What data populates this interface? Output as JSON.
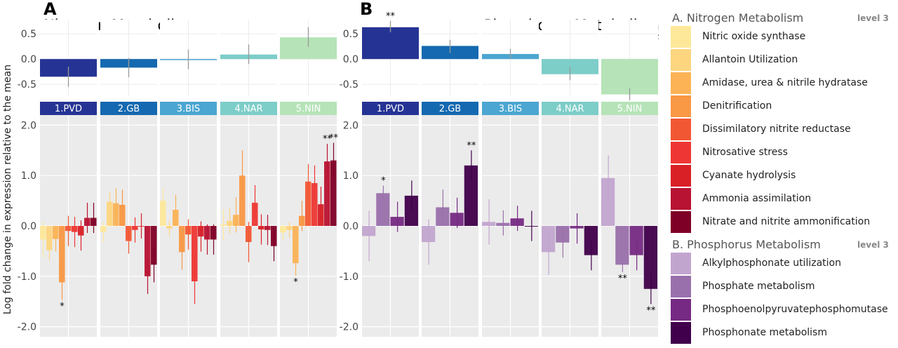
{
  "y_axis_title": "Log fold change in expression relative to the mean",
  "panels": [
    {
      "letter": "A",
      "title": "Nitrogen Metabolism",
      "level_label": "level 2",
      "chart_data": {
        "type": "bar",
        "categories": [
          "1.PVD",
          "2.GB",
          "3.BIS",
          "4.NAR",
          "5.NIN"
        ],
        "facet_colors": [
          "#253494",
          "#1569b0",
          "#4ba6d1",
          "#7dcdc8",
          "#b6e3b8"
        ],
        "top": {
          "ylim": [
            -0.72,
            0.78
          ],
          "ticks": [
            "0.5",
            "0.0",
            "-0.5"
          ],
          "tick_values": [
            0.5,
            0.0,
            -0.5
          ],
          "values": [
            -0.35,
            -0.17,
            -0.02,
            0.09,
            0.43
          ],
          "errors": [
            [
              -0.55,
              -0.15
            ],
            [
              -0.36,
              0.02
            ],
            [
              -0.2,
              0.19
            ],
            [
              -0.1,
              0.29
            ],
            [
              0.24,
              0.63
            ]
          ],
          "annotations": [
            "",
            "",
            "",
            "",
            ""
          ]
        },
        "bottom": {
          "ylim": [
            -2.2,
            2.2
          ],
          "ticks": [
            "2.0",
            "1.0",
            "0.0",
            "-1.0",
            "-2.0"
          ],
          "tick_values": [
            2.0,
            1.0,
            0.0,
            -1.0,
            -2.0
          ],
          "series": [
            {
              "name": "Nitric oxide synthase",
              "color": "#fde89a",
              "values": [
                -0.27,
                -0.12,
                0.5,
                0.03,
                -0.13
              ]
            },
            {
              "name": "Allantoin Utilization",
              "color": "#fdd57f",
              "values": [
                -0.48,
                0.48,
                -0.05,
                0.1,
                -0.08
              ]
            },
            {
              "name": "Amidase, urea & nitrile hydratase",
              "color": "#fbb356",
              "values": [
                -0.26,
                0.45,
                0.32,
                0.22,
                -0.74
              ]
            },
            {
              "name": "Denitrification",
              "color": "#f99845",
              "values": [
                -1.12,
                0.42,
                -0.52,
                1.0,
                0.2
              ]
            },
            {
              "name": "Dissimilatory nitrite reductase",
              "color": "#f25734",
              "values": [
                -0.1,
                -0.3,
                -0.17,
                -0.32,
                0.88
              ]
            },
            {
              "name": "Nitrosative stress",
              "color": "#ee3734",
              "values": [
                -0.12,
                -0.08,
                -1.1,
                0.46,
                0.85
              ]
            },
            {
              "name": "Cyanate hydrolysis",
              "color": "#d92027",
              "values": [
                -0.19,
                0.0,
                -0.21,
                -0.07,
                0.43
              ]
            },
            {
              "name": "Ammonia assimilation",
              "color": "#b81332",
              "values": [
                0.16,
                -1.0,
                -0.27,
                -0.08,
                1.28
              ]
            },
            {
              "name": "Nitrate and nitrite ammonification",
              "color": "#7f0026",
              "values": [
                0.16,
                -0.77,
                -0.27,
                -0.4,
                1.3
              ]
            }
          ],
          "error_half_widths": [
            [
              0.35,
              0.2,
              0.25,
              0.3,
              0.15
            ],
            [
              0.2,
              0.2,
              0.15,
              0.25,
              0.15
            ],
            [
              0.25,
              0.3,
              0.3,
              0.35,
              0.25
            ],
            [
              0.35,
              0.3,
              0.35,
              0.5,
              0.3
            ],
            [
              0.3,
              0.25,
              0.3,
              0.4,
              0.35
            ],
            [
              0.3,
              0.25,
              0.45,
              0.35,
              0.35
            ],
            [
              0.3,
              0.25,
              0.3,
              0.3,
              0.35
            ],
            [
              0.3,
              0.35,
              0.3,
              0.3,
              0.35
            ],
            [
              0.3,
              0.35,
              0.3,
              0.3,
              0.35
            ]
          ],
          "annotations": [
            {
              "facet": 0,
              "bar": 3,
              "text": "*"
            },
            {
              "facet": 4,
              "bar": 2,
              "text": "*"
            },
            {
              "facet": 4,
              "bar": 7,
              "text": "**"
            },
            {
              "facet": 4,
              "bar": 8,
              "text": "**"
            }
          ]
        }
      }
    },
    {
      "letter": "B",
      "title": "Phosphorus Metabolism",
      "level_label": "level 2",
      "chart_data": {
        "type": "bar",
        "categories": [
          "1.PVD",
          "2.GB",
          "3.BIS",
          "4.NAR",
          "5.NIN"
        ],
        "facet_colors": [
          "#253494",
          "#1569b0",
          "#4ba6d1",
          "#7dcdc8",
          "#b6e3b8"
        ],
        "top": {
          "ylim": [
            -0.72,
            0.78
          ],
          "ticks": [
            "0.5",
            "0.0",
            "-0.5"
          ],
          "tick_values": [
            0.5,
            0.0,
            -0.5
          ],
          "values": [
            0.63,
            0.26,
            0.1,
            -0.3,
            -0.7
          ],
          "errors": [
            [
              0.53,
              0.75
            ],
            [
              0.12,
              0.38
            ],
            [
              0.0,
              0.2
            ],
            [
              -0.42,
              -0.16
            ],
            [
              -0.82,
              -0.58
            ]
          ],
          "annotations": [
            "**",
            "",
            "",
            "",
            "**"
          ]
        },
        "bottom": {
          "ylim": [
            -2.2,
            2.2
          ],
          "ticks": [
            "2.0",
            "1.0",
            "0.0",
            "-1.0",
            "-2.0"
          ],
          "tick_values": [
            2.0,
            1.0,
            0.0,
            -1.0,
            -2.0
          ],
          "series": [
            {
              "name": "Alkylphosphonate utilization",
              "color": "#c2a5cf",
              "values": [
                -0.2,
                -0.32,
                0.08,
                -0.52,
                0.95
              ]
            },
            {
              "name": "Phosphate metabolism",
              "color": "#9970ab",
              "values": [
                0.65,
                0.37,
                0.06,
                -0.33,
                -0.77
              ]
            },
            {
              "name": "Phosphoenolpyruvatephosphomutase",
              "color": "#762a83",
              "values": [
                0.18,
                0.26,
                0.15,
                -0.05,
                -0.58
              ]
            },
            {
              "name": "Phosphonate metabolism",
              "color": "#40004b",
              "values": [
                0.6,
                1.2,
                0.0,
                -0.58,
                -1.25
              ]
            }
          ],
          "error_half_widths": [
            [
              0.5,
              0.45,
              0.45,
              0.45,
              0.45
            ],
            [
              0.15,
              0.35,
              0.25,
              0.3,
              0.15
            ],
            [
              0.3,
              0.3,
              0.25,
              0.3,
              0.3
            ],
            [
              0.3,
              0.3,
              0.3,
              0.3,
              0.3
            ]
          ],
          "annotations": [
            {
              "facet": 0,
              "bar": 1,
              "text": "*"
            },
            {
              "facet": 1,
              "bar": 3,
              "text": "**"
            },
            {
              "facet": 4,
              "bar": 1,
              "text": "**"
            },
            {
              "facet": 4,
              "bar": 3,
              "text": "**"
            }
          ]
        }
      }
    }
  ],
  "legend": {
    "sections": [
      {
        "title": "A. Nitrogen Metabolism",
        "level": "level 3",
        "items": [
          {
            "label": "Nitric oxide synthase",
            "color": "#fde89a"
          },
          {
            "label": "Allantoin Utilization",
            "color": "#fdd57f"
          },
          {
            "label": "Amidase, urea & nitrile hydratase",
            "color": "#fbb356"
          },
          {
            "label": "Denitrification",
            "color": "#f99845"
          },
          {
            "label": "Dissimilatory nitrite reductase",
            "color": "#f25734"
          },
          {
            "label": "Nitrosative stress",
            "color": "#ee3734"
          },
          {
            "label": "Cyanate hydrolysis",
            "color": "#d92027"
          },
          {
            "label": "Ammonia assimilation",
            "color": "#b81332"
          },
          {
            "label": "Nitrate and nitrite ammonification",
            "color": "#7f0026"
          }
        ]
      },
      {
        "title": "B. Phosphorus Metabolism",
        "level": "level 3",
        "items": [
          {
            "label": "Alkylphosphonate utilization",
            "color": "#c2a5cf"
          },
          {
            "label": "Phosphate metabolism",
            "color": "#9970ab"
          },
          {
            "label": "Phosphoenolpyruvatephosphomutase",
            "color": "#762a83"
          },
          {
            "label": "Phosphonate metabolism",
            "color": "#40004b"
          }
        ]
      }
    ]
  }
}
